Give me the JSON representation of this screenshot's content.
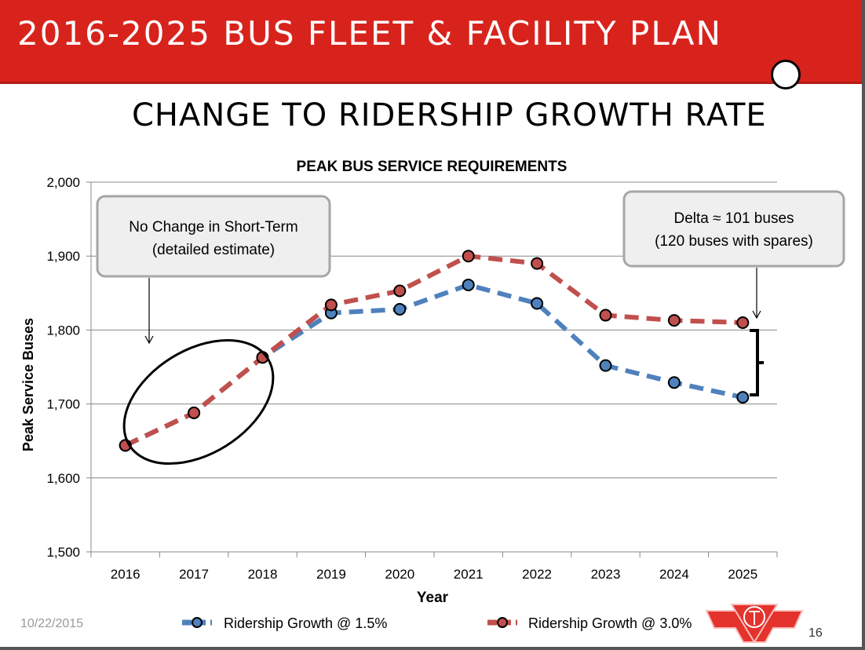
{
  "header": {
    "title": "2016-2025 BUS FLEET & FACILITY PLAN"
  },
  "slide": {
    "subtitle": "CHANGE TO RIDERSHIP GROWTH RATE",
    "date": "10/22/2015",
    "page": "16",
    "logo": "TTC"
  },
  "colors": {
    "header": "#d8231c",
    "series_blue": "#4f81bd",
    "series_red": "#c0504d"
  },
  "chart_data": {
    "type": "line",
    "title": "PEAK BUS SERVICE REQUIREMENTS",
    "xlabel": "Year",
    "ylabel": "Peak Service Buses",
    "categories": [
      "2016",
      "2017",
      "2018",
      "2019",
      "2020",
      "2021",
      "2022",
      "2023",
      "2024",
      "2025"
    ],
    "ylim": [
      1500,
      2000
    ],
    "yticks": [
      "1,500",
      "1,600",
      "1,700",
      "1,800",
      "1,900",
      "2,000"
    ],
    "ytick_values": [
      1500,
      1600,
      1700,
      1800,
      1900,
      2000
    ],
    "grid": true,
    "legend": "bottom",
    "series": [
      {
        "name": "Ridership Growth @ 1.5%",
        "color": "#4f81bd",
        "values": [
          1644,
          1688,
          1763,
          1823,
          1828,
          1861,
          1836,
          1752,
          1729,
          1709
        ]
      },
      {
        "name": "Ridership Growth @ 3.0%",
        "color": "#c0504d",
        "values": [
          1644,
          1688,
          1763,
          1834,
          1853,
          1900,
          1890,
          1820,
          1813,
          1810
        ]
      }
    ],
    "annotations": [
      {
        "line1": "No Change in Short-Term",
        "line2": "(detailed estimate)"
      },
      {
        "line1": "Delta ≈ 101 buses",
        "line2": "(120 buses with spares)"
      }
    ]
  }
}
